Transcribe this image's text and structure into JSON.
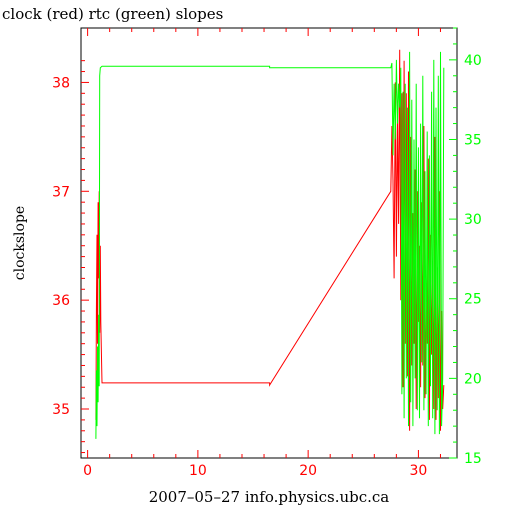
{
  "chart_data": {
    "type": "line",
    "title": "clock (red) rtc (green) slopes",
    "xlabel": "2007–05–27 info.physics.ubc.ca",
    "ylabel": "clockslope",
    "xlim": [
      -0.6,
      33.5
    ],
    "ylim_left": [
      34.55,
      38.5
    ],
    "ylim_right": [
      15,
      42
    ],
    "x_ticks": [
      0,
      10,
      20,
      30
    ],
    "y_ticks_left": [
      35,
      36,
      37,
      38
    ],
    "y_ticks_right": [
      15,
      20,
      25,
      30,
      35,
      40
    ],
    "grid": false,
    "colors": {
      "clock": "#ff0000",
      "rtc": "#00ff00",
      "axes": "#000000"
    },
    "series": [
      {
        "name": "clock",
        "axis": "left",
        "color": "#ff0000",
        "x": [
          0.75,
          0.8,
          0.85,
          0.9,
          0.95,
          1.0,
          1.05,
          1.1,
          1.15,
          1.2,
          1.3,
          16.5,
          16.5,
          27.5,
          27.6,
          27.7,
          27.8,
          27.9,
          28.0,
          28.1,
          28.2,
          28.3,
          28.4,
          28.5,
          28.6,
          28.7,
          28.8,
          28.9,
          29.0,
          29.1,
          29.2,
          29.3,
          29.4,
          29.5,
          29.6,
          29.7,
          29.8,
          29.9,
          30.0,
          30.1,
          30.2,
          30.3,
          30.4,
          30.5,
          30.6,
          30.7,
          30.8,
          30.9,
          31.0,
          31.1,
          31.2,
          31.3,
          31.4,
          31.5,
          31.6,
          31.7,
          31.8,
          31.9,
          32.0,
          32.1,
          32.2,
          32.3
        ],
        "y": [
          34.9,
          35.9,
          36.6,
          35.6,
          36.9,
          36.2,
          37.0,
          35.7,
          36.5,
          35.8,
          35.24,
          35.24,
          35.22,
          37.0,
          37.6,
          37.1,
          36.2,
          38.0,
          36.4,
          37.7,
          36.7,
          38.3,
          36.0,
          37.9,
          35.2,
          38.2,
          35.6,
          37.9,
          35.3,
          38.1,
          34.8,
          37.5,
          35.4,
          36.8,
          35.6,
          37.2,
          35.0,
          37.0,
          35.8,
          36.5,
          35.2,
          36.9,
          35.4,
          37.6,
          35.1,
          36.0,
          35.6,
          37.3,
          34.9,
          36.6,
          35.5,
          36.3,
          35.0,
          37.5,
          34.9,
          36.3,
          35.1,
          37.0,
          34.8,
          35.9,
          35.0,
          35.22
        ]
      },
      {
        "name": "rtc",
        "axis": "right",
        "color": "#00ff00",
        "x": [
          0.75,
          0.8,
          0.85,
          0.9,
          0.95,
          1.0,
          1.05,
          1.1,
          1.15,
          1.3,
          16.5,
          16.5,
          27.5,
          27.6,
          27.7,
          27.8,
          27.9,
          28.0,
          28.1,
          28.2,
          28.3,
          28.4,
          28.5,
          28.6,
          28.7,
          28.8,
          28.9,
          29.0,
          29.1,
          29.2,
          29.3,
          29.4,
          29.5,
          29.6,
          29.7,
          29.8,
          29.9,
          30.0,
          30.1,
          30.2,
          30.3,
          30.4,
          30.5,
          30.6,
          30.7,
          30.8,
          30.9,
          31.0,
          31.1,
          31.2,
          31.3,
          31.4,
          31.5,
          31.6,
          31.7,
          31.8,
          31.9,
          32.0,
          32.1,
          32.2,
          32.3
        ],
        "y": [
          16.2,
          20.5,
          17.0,
          22.0,
          18.5,
          24.0,
          19.5,
          39.0,
          39.5,
          39.6,
          39.6,
          39.5,
          39.5,
          39.8,
          34.0,
          38.5,
          35.0,
          40.0,
          36.0,
          38.5,
          37.0,
          39.5,
          19.0,
          38.0,
          17.5,
          38.5,
          20.0,
          37.0,
          17.0,
          40.5,
          18.5,
          37.5,
          17.0,
          35.0,
          20.0,
          38.5,
          18.0,
          34.5,
          17.5,
          36.0,
          21.0,
          39.0,
          18.0,
          33.0,
          19.0,
          35.5,
          17.0,
          34.0,
          19.5,
          38.0,
          17.5,
          40.0,
          16.5,
          37.0,
          18.0,
          39.0,
          16.5,
          40.5,
          17.0,
          20.0,
          39.5
        ]
      }
    ]
  }
}
